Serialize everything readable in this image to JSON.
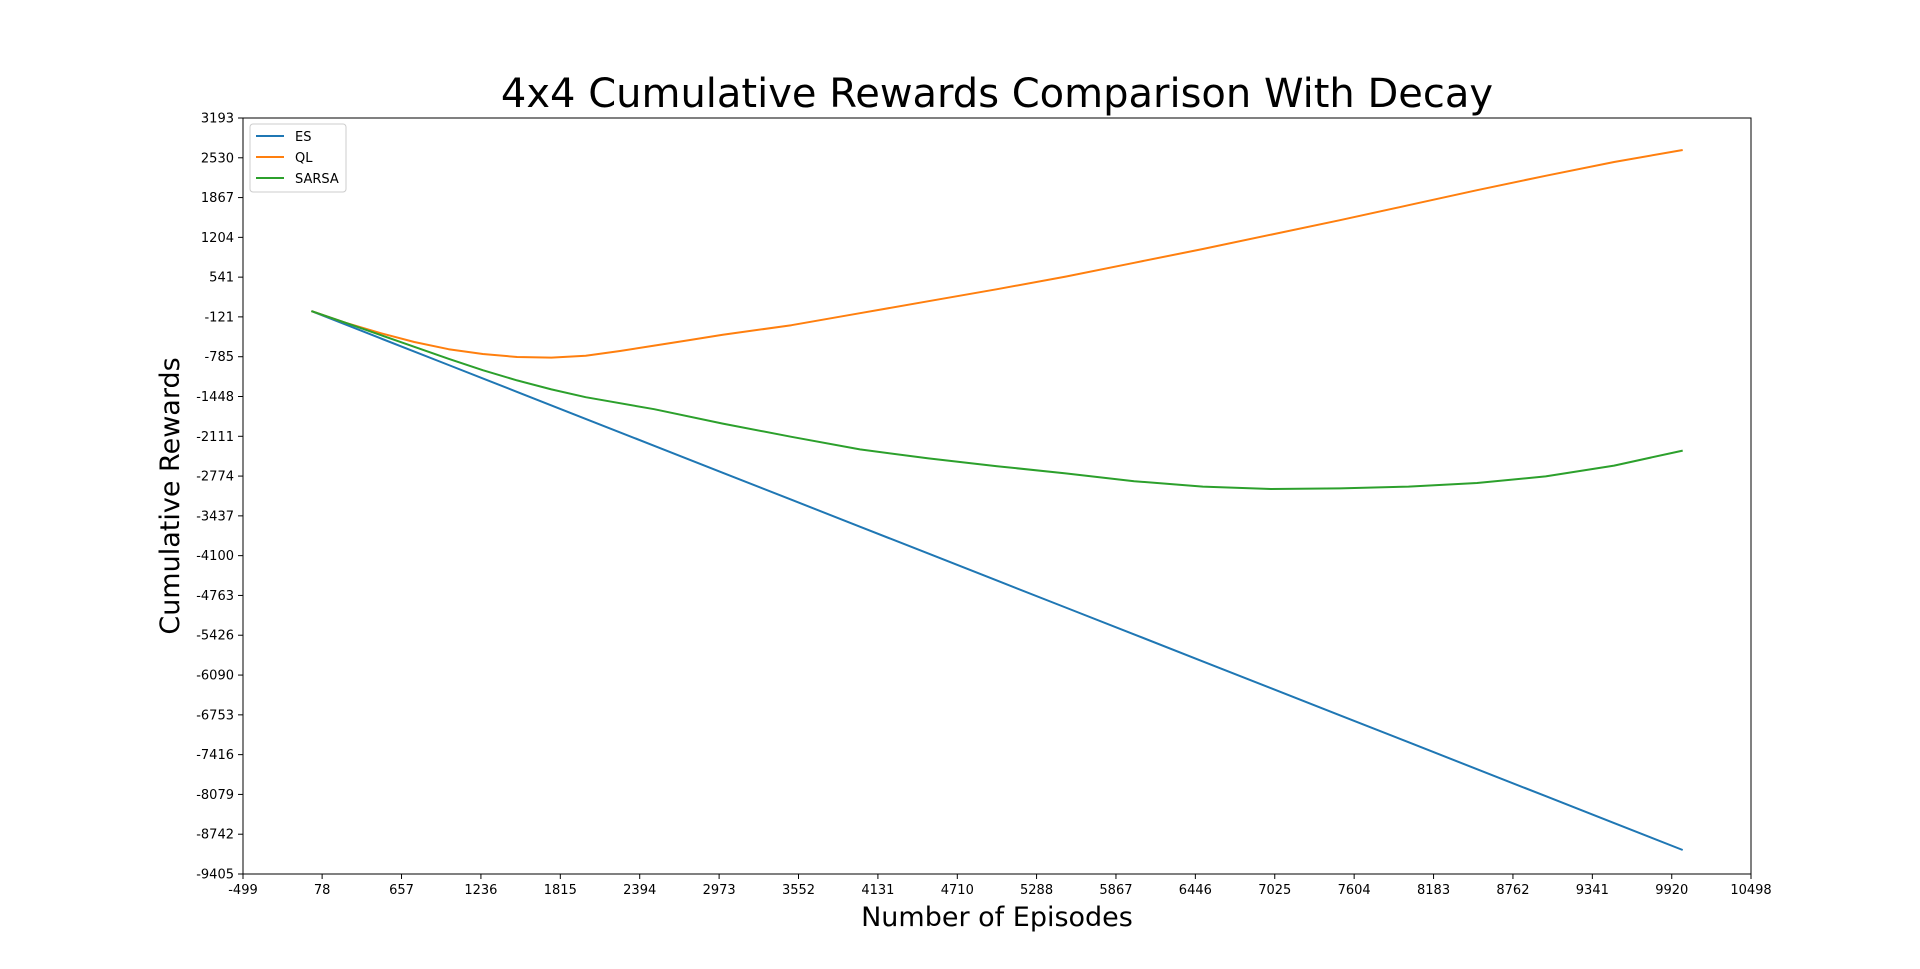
{
  "chart_data": {
    "type": "line",
    "title": "4x4 Cumulative Rewards Comparison With Decay",
    "xlabel": "Number of Episodes",
    "ylabel": "Cumulative Rewards",
    "xlim": [
      -499,
      10498
    ],
    "ylim": [
      -9405,
      3193
    ],
    "xticks": [
      "-499",
      "78",
      "657",
      "1236",
      "1815",
      "2394",
      "2973",
      "3552",
      "4131",
      "4710",
      "5288",
      "5867",
      "6446",
      "7025",
      "7604",
      "8183",
      "8762",
      "9341",
      "9920",
      "10498"
    ],
    "yticks": [
      "3193",
      "2530",
      "1867",
      "1204",
      "541",
      "-121",
      "-785",
      "-1448",
      "-2111",
      "-2774",
      "-3437",
      "-4100",
      "-4763",
      "-5426",
      "-6090",
      "-6753",
      "-7416",
      "-8079",
      "-8742",
      "-9405"
    ],
    "grid": false,
    "legend_position": "top-left",
    "series": [
      {
        "name": "ES",
        "color": "#1f77b4",
        "x": [
          0,
          500,
          1000,
          1500,
          2000,
          2500,
          3000,
          3500,
          4000,
          4500,
          5000,
          5500,
          6000,
          6500,
          7000,
          7500,
          8000,
          8500,
          9000,
          9500,
          10000
        ],
        "y": [
          -25,
          -474,
          -923,
          -1372,
          -1821,
          -2270,
          -2719,
          -3168,
          -3617,
          -4066,
          -4515,
          -4964,
          -5413,
          -5862,
          -6311,
          -6760,
          -7209,
          -7658,
          -8107,
          -8556,
          -9005
        ]
      },
      {
        "name": "QL",
        "color": "#ff7f0e",
        "x": [
          0,
          250,
          500,
          750,
          1000,
          1250,
          1500,
          1750,
          2000,
          2250,
          2500,
          2750,
          3000,
          3500,
          4000,
          4500,
          5000,
          5500,
          6000,
          6500,
          7000,
          7500,
          8000,
          8500,
          9000,
          9500,
          10000
        ],
        "y": [
          -25,
          -220,
          -390,
          -540,
          -660,
          -740,
          -790,
          -800,
          -770,
          -690,
          -600,
          -510,
          -420,
          -260,
          -60,
          140,
          340,
          550,
          780,
          1010,
          1250,
          1490,
          1740,
          1990,
          2230,
          2460,
          2660
        ]
      },
      {
        "name": "SARSA",
        "color": "#2ca02c",
        "x": [
          0,
          250,
          500,
          750,
          1000,
          1250,
          1500,
          1750,
          2000,
          2500,
          3000,
          3500,
          4000,
          4500,
          5000,
          5500,
          6000,
          6500,
          7000,
          7500,
          8000,
          8500,
          9000,
          9500,
          10000
        ],
        "y": [
          -25,
          -220,
          -420,
          -620,
          -820,
          -1010,
          -1180,
          -1330,
          -1460,
          -1660,
          -1900,
          -2120,
          -2330,
          -2480,
          -2610,
          -2730,
          -2860,
          -2950,
          -2990,
          -2980,
          -2950,
          -2890,
          -2780,
          -2600,
          -2350
        ]
      }
    ]
  }
}
